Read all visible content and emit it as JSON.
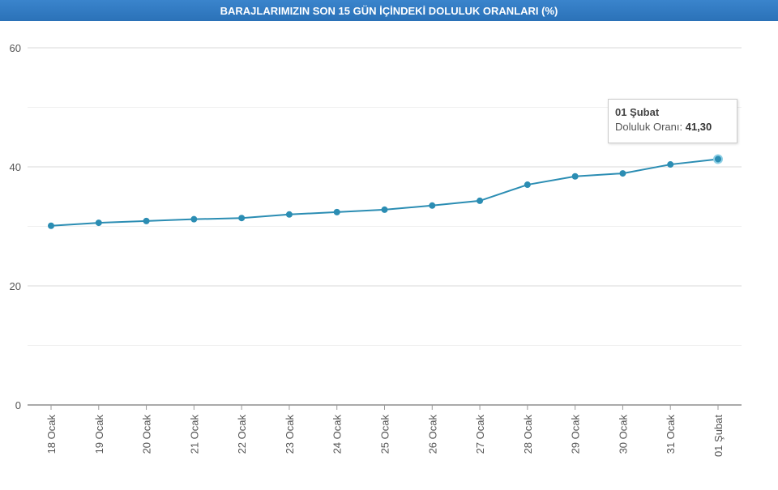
{
  "chart_data": {
    "type": "line",
    "title": "BARAJLARIMIZIN SON 15 GÜN İÇİNDEKİ DOLULUK ORANLARI (%)",
    "xlabel": "",
    "ylabel": "",
    "categories": [
      "18 Ocak",
      "19 Ocak",
      "20 Ocak",
      "21 Ocak",
      "22 Ocak",
      "23 Ocak",
      "24 Ocak",
      "25 Ocak",
      "26 Ocak",
      "27 Ocak",
      "28 Ocak",
      "29 Ocak",
      "30 Ocak",
      "31 Ocak",
      "01 Şubat"
    ],
    "series": [
      {
        "name": "Doluluk Oranı",
        "values": [
          30.1,
          30.6,
          30.9,
          31.2,
          31.4,
          32.0,
          32.4,
          32.8,
          33.5,
          34.3,
          37.0,
          38.4,
          38.9,
          40.4,
          41.3
        ],
        "color": "#2b8db3"
      }
    ],
    "ylim": [
      0,
      60
    ],
    "yticks": [
      0,
      20,
      40,
      60
    ],
    "grid": true,
    "legend": "none"
  },
  "tooltip": {
    "title": "01 Şubat",
    "label": "Doluluk Oranı:",
    "value": "41,30"
  }
}
